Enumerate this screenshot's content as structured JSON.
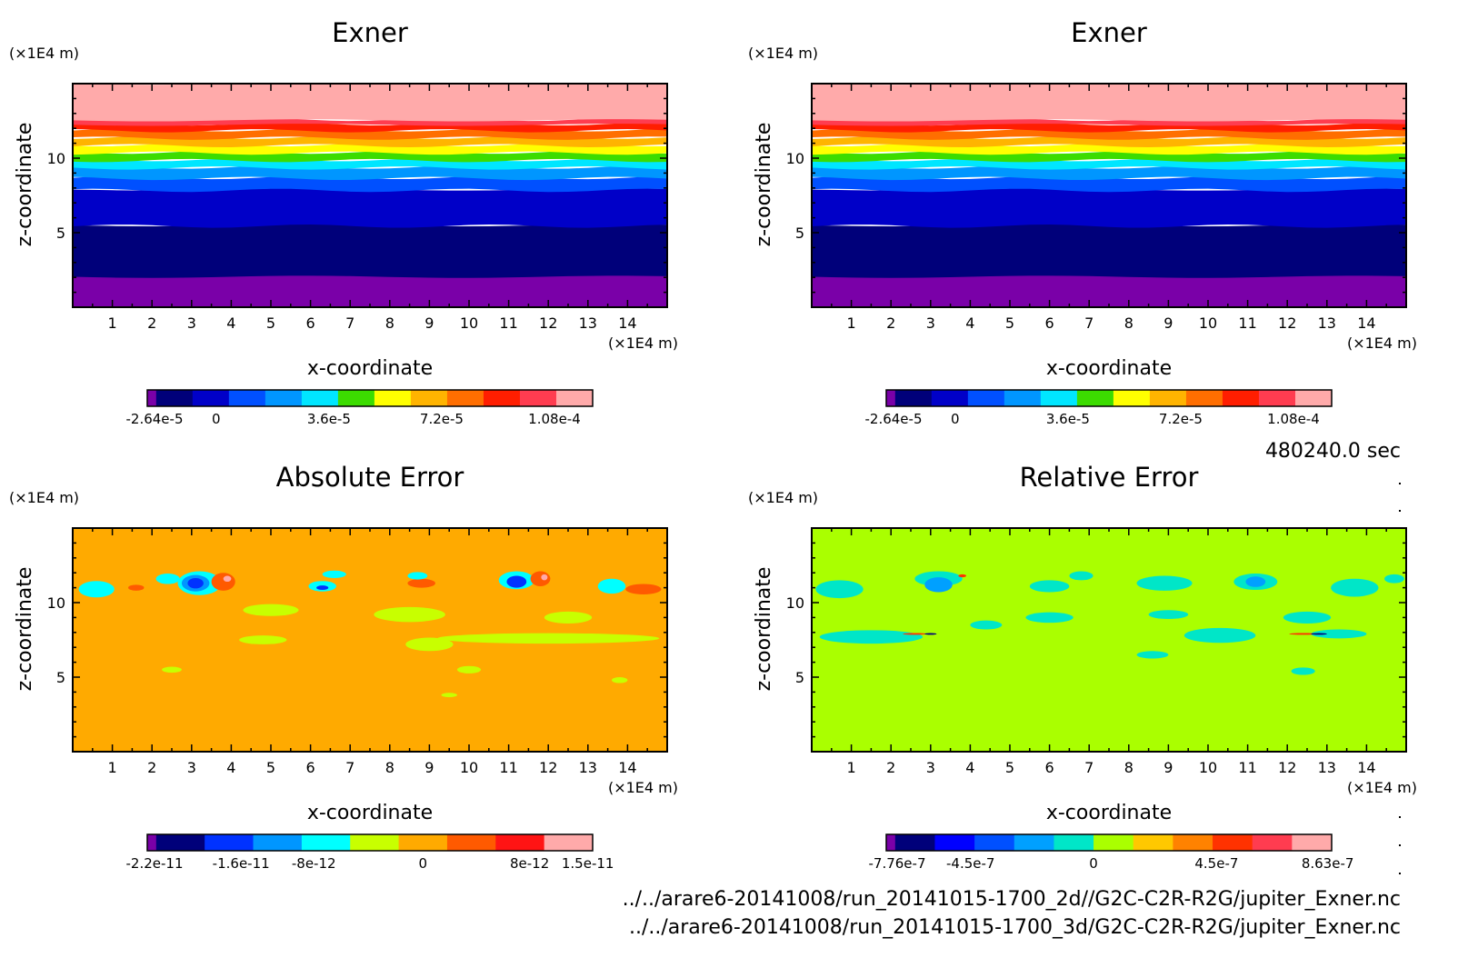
{
  "time_label": "480240.0 sec",
  "files": [
    "../../arare6-20141008/run_20141015-1700_2d//G2C-C2R-R2G/jupiter_Exner.nc",
    "../../arare6-20141008/run_20141015-1700_3d/G2C-C2R-R2G/jupiter_Exner.nc"
  ],
  "chart_data": [
    {
      "type": "heatmap",
      "title": "Exner",
      "xlabel": "x-coordinate",
      "ylabel": "z-coordinate",
      "x_unit": "(×1E4 m)",
      "y_unit": "(×1E4 m)",
      "xlim": [
        0,
        15
      ],
      "ylim": [
        0,
        15
      ],
      "x_ticks": [
        "1",
        "2",
        "3",
        "4",
        "5",
        "6",
        "7",
        "8",
        "9",
        "10",
        "11",
        "12",
        "13",
        "14"
      ],
      "y_ticks": [
        "5",
        "10"
      ],
      "colorbar": {
        "colors": [
          "#7a00a8",
          "#00007a",
          "#0000c8",
          "#0050ff",
          "#0096ff",
          "#00e6ff",
          "#3cdc00",
          "#ffff00",
          "#ffb400",
          "#ff6e00",
          "#ff1e00",
          "#ff3c50",
          "#ffaaaa"
        ],
        "labels": [
          "-2.64e-5",
          "0",
          "3.6e-5",
          "7.2e-5",
          "1.08e-4"
        ]
      },
      "bands": [
        {
          "z0": 0,
          "z1": 2.1,
          "color": "#7a00a8"
        },
        {
          "z0": 2.1,
          "z1": 5.5,
          "color": "#00007a"
        },
        {
          "z0": 5.5,
          "z1": 7.9,
          "color": "#0000c8"
        },
        {
          "z0": 7.9,
          "z1": 8.7,
          "color": "#0050ff"
        },
        {
          "z0": 8.7,
          "z1": 9.4,
          "color": "#0096ff"
        },
        {
          "z0": 9.4,
          "z1": 9.9,
          "color": "#00e6ff"
        },
        {
          "z0": 9.9,
          "z1": 10.4,
          "color": "#3cdc00"
        },
        {
          "z0": 10.4,
          "z1": 10.9,
          "color": "#ffff00"
        },
        {
          "z0": 10.9,
          "z1": 11.4,
          "color": "#ffb400"
        },
        {
          "z0": 11.4,
          "z1": 11.9,
          "color": "#ff6e00"
        },
        {
          "z0": 11.9,
          "z1": 12.3,
          "color": "#ff1e00"
        },
        {
          "z0": 12.3,
          "z1": 12.6,
          "color": "#ff3c50"
        },
        {
          "z0": 12.6,
          "z1": 15,
          "color": "#ffaaaa"
        }
      ]
    },
    {
      "type": "heatmap",
      "title": "Exner",
      "xlabel": "x-coordinate",
      "ylabel": "z-coordinate",
      "x_unit": "(×1E4 m)",
      "y_unit": "(×1E4 m)",
      "xlim": [
        0,
        15
      ],
      "ylim": [
        0,
        15
      ],
      "x_ticks": [
        "1",
        "2",
        "3",
        "4",
        "5",
        "6",
        "7",
        "8",
        "9",
        "10",
        "11",
        "12",
        "13",
        "14"
      ],
      "y_ticks": [
        "5",
        "10"
      ],
      "colorbar": {
        "colors": [
          "#7a00a8",
          "#00007a",
          "#0000c8",
          "#0050ff",
          "#0096ff",
          "#00e6ff",
          "#3cdc00",
          "#ffff00",
          "#ffb400",
          "#ff6e00",
          "#ff1e00",
          "#ff3c50",
          "#ffaaaa"
        ],
        "labels": [
          "-2.64e-5",
          "0",
          "3.6e-5",
          "7.2e-5",
          "1.08e-4"
        ]
      },
      "bands": [
        {
          "z0": 0,
          "z1": 2.1,
          "color": "#7a00a8"
        },
        {
          "z0": 2.1,
          "z1": 5.5,
          "color": "#00007a"
        },
        {
          "z0": 5.5,
          "z1": 7.9,
          "color": "#0000c8"
        },
        {
          "z0": 7.9,
          "z1": 8.7,
          "color": "#0050ff"
        },
        {
          "z0": 8.7,
          "z1": 9.4,
          "color": "#0096ff"
        },
        {
          "z0": 9.4,
          "z1": 9.9,
          "color": "#00e6ff"
        },
        {
          "z0": 9.9,
          "z1": 10.4,
          "color": "#3cdc00"
        },
        {
          "z0": 10.4,
          "z1": 10.9,
          "color": "#ffff00"
        },
        {
          "z0": 10.9,
          "z1": 11.4,
          "color": "#ffb400"
        },
        {
          "z0": 11.4,
          "z1": 11.9,
          "color": "#ff6e00"
        },
        {
          "z0": 11.9,
          "z1": 12.3,
          "color": "#ff1e00"
        },
        {
          "z0": 12.3,
          "z1": 12.6,
          "color": "#ff3c50"
        },
        {
          "z0": 12.6,
          "z1": 15,
          "color": "#ffaaaa"
        }
      ]
    },
    {
      "type": "heatmap",
      "title": "Absolute Error",
      "xlabel": "x-coordinate",
      "ylabel": "z-coordinate",
      "x_unit": "(×1E4 m)",
      "y_unit": "(×1E4 m)",
      "xlim": [
        0,
        15
      ],
      "ylim": [
        0,
        15
      ],
      "x_ticks": [
        "1",
        "2",
        "3",
        "4",
        "5",
        "6",
        "7",
        "8",
        "9",
        "10",
        "11",
        "12",
        "13",
        "14"
      ],
      "y_ticks": [
        "5",
        "10"
      ],
      "background": "#ffaa00",
      "colorbar": {
        "colors": [
          "#7a00a8",
          "#00007a",
          "#0032ff",
          "#0096ff",
          "#00ffff",
          "#c8ff00",
          "#ffaa00",
          "#ff5a00",
          "#ff1414",
          "#ffaaaa"
        ],
        "labels": [
          "-2.2e-11",
          "-1.6e-11",
          "-8e-12",
          "0",
          "8e-12",
          "1.5e-11"
        ]
      },
      "patches": [
        {
          "x": 0.6,
          "z": 10.9,
          "rx": 0.45,
          "rz": 0.55,
          "color": "#00ffff"
        },
        {
          "x": 2.4,
          "z": 11.6,
          "rx": 0.3,
          "rz": 0.35,
          "color": "#00ffff"
        },
        {
          "x": 3.2,
          "z": 11.3,
          "rx": 0.55,
          "rz": 0.8,
          "color": "#00ffff"
        },
        {
          "x": 3.1,
          "z": 11.3,
          "rx": 0.35,
          "rz": 0.55,
          "color": "#0096ff"
        },
        {
          "x": 3.1,
          "z": 11.3,
          "rx": 0.2,
          "rz": 0.35,
          "color": "#0032ff"
        },
        {
          "x": 3.8,
          "z": 11.4,
          "rx": 0.3,
          "rz": 0.6,
          "color": "#ff5a00"
        },
        {
          "x": 3.9,
          "z": 11.6,
          "rx": 0.1,
          "rz": 0.2,
          "color": "#ffaaaa"
        },
        {
          "x": 1.6,
          "z": 11.0,
          "rx": 0.2,
          "rz": 0.2,
          "color": "#ff5a00"
        },
        {
          "x": 6.3,
          "z": 11.1,
          "rx": 0.35,
          "rz": 0.35,
          "color": "#00ffff"
        },
        {
          "x": 6.3,
          "z": 11.0,
          "rx": 0.15,
          "rz": 0.15,
          "color": "#0032ff"
        },
        {
          "x": 6.6,
          "z": 11.9,
          "rx": 0.3,
          "rz": 0.25,
          "color": "#00ffff"
        },
        {
          "x": 8.8,
          "z": 11.3,
          "rx": 0.35,
          "rz": 0.3,
          "color": "#ff5a00"
        },
        {
          "x": 8.7,
          "z": 11.8,
          "rx": 0.25,
          "rz": 0.25,
          "color": "#00ffff"
        },
        {
          "x": 11.2,
          "z": 11.5,
          "rx": 0.45,
          "rz": 0.6,
          "color": "#00ffff"
        },
        {
          "x": 11.2,
          "z": 11.4,
          "rx": 0.25,
          "rz": 0.4,
          "color": "#0032ff"
        },
        {
          "x": 11.8,
          "z": 11.6,
          "rx": 0.25,
          "rz": 0.5,
          "color": "#ff5a00"
        },
        {
          "x": 11.9,
          "z": 11.7,
          "rx": 0.08,
          "rz": 0.2,
          "color": "#ffaaaa"
        },
        {
          "x": 13.6,
          "z": 11.1,
          "rx": 0.35,
          "rz": 0.5,
          "color": "#00ffff"
        },
        {
          "x": 14.4,
          "z": 10.9,
          "rx": 0.45,
          "rz": 0.35,
          "color": "#ff5a00"
        },
        {
          "x": 5.0,
          "z": 9.5,
          "rx": 0.7,
          "rz": 0.4,
          "color": "#c8ff00"
        },
        {
          "x": 8.5,
          "z": 9.2,
          "rx": 0.9,
          "rz": 0.5,
          "color": "#c8ff00"
        },
        {
          "x": 12.5,
          "z": 9.0,
          "rx": 0.6,
          "rz": 0.4,
          "color": "#c8ff00"
        },
        {
          "x": 9.0,
          "z": 7.2,
          "rx": 0.6,
          "rz": 0.45,
          "color": "#c8ff00"
        },
        {
          "x": 12.0,
          "z": 7.6,
          "rx": 2.8,
          "rz": 0.35,
          "color": "#c8ff00"
        },
        {
          "x": 4.8,
          "z": 7.5,
          "rx": 0.6,
          "rz": 0.3,
          "color": "#c8ff00"
        },
        {
          "x": 2.5,
          "z": 5.5,
          "rx": 0.25,
          "rz": 0.2,
          "color": "#c8ff00"
        },
        {
          "x": 10.0,
          "z": 5.5,
          "rx": 0.3,
          "rz": 0.25,
          "color": "#c8ff00"
        },
        {
          "x": 13.8,
          "z": 4.8,
          "rx": 0.2,
          "rz": 0.2,
          "color": "#c8ff00"
        },
        {
          "x": 9.5,
          "z": 3.8,
          "rx": 0.2,
          "rz": 0.15,
          "color": "#c8ff00"
        }
      ]
    },
    {
      "type": "heatmap",
      "title": "Relative Error",
      "xlabel": "x-coordinate",
      "ylabel": "z-coordinate",
      "x_unit": "(×1E4 m)",
      "y_unit": "(×1E4 m)",
      "xlim": [
        0,
        15
      ],
      "ylim": [
        0,
        15
      ],
      "x_ticks": [
        "1",
        "2",
        "3",
        "4",
        "5",
        "6",
        "7",
        "8",
        "9",
        "10",
        "11",
        "12",
        "13",
        "14"
      ],
      "y_ticks": [
        "5",
        "10"
      ],
      "background": "#aaff00",
      "colorbar": {
        "colors": [
          "#7a00a8",
          "#00007a",
          "#0000ff",
          "#0050ff",
          "#00a0ff",
          "#00e6c8",
          "#aaff00",
          "#ffc800",
          "#ff8200",
          "#ff3200",
          "#ff3c50",
          "#ffaaaa"
        ],
        "labels": [
          "-7.76e-7",
          "-4.5e-7",
          "0",
          "4.5e-7",
          "8.63e-7"
        ]
      },
      "patches": [
        {
          "x": 0.7,
          "z": 10.9,
          "rx": 0.6,
          "rz": 0.6,
          "color": "#00e6c8"
        },
        {
          "x": 3.2,
          "z": 11.6,
          "rx": 0.6,
          "rz": 0.5,
          "color": "#00e6c8"
        },
        {
          "x": 3.2,
          "z": 11.2,
          "rx": 0.35,
          "rz": 0.5,
          "color": "#00a0ff"
        },
        {
          "x": 6.0,
          "z": 11.1,
          "rx": 0.5,
          "rz": 0.4,
          "color": "#00e6c8"
        },
        {
          "x": 6.8,
          "z": 11.8,
          "rx": 0.3,
          "rz": 0.3,
          "color": "#00e6c8"
        },
        {
          "x": 8.9,
          "z": 11.3,
          "rx": 0.7,
          "rz": 0.5,
          "color": "#00e6c8"
        },
        {
          "x": 11.2,
          "z": 11.4,
          "rx": 0.55,
          "rz": 0.55,
          "color": "#00e6c8"
        },
        {
          "x": 11.2,
          "z": 11.4,
          "rx": 0.25,
          "rz": 0.35,
          "color": "#00a0ff"
        },
        {
          "x": 13.7,
          "z": 11.0,
          "rx": 0.6,
          "rz": 0.6,
          "color": "#00e6c8"
        },
        {
          "x": 14.7,
          "z": 11.6,
          "rx": 0.25,
          "rz": 0.3,
          "color": "#00e6c8"
        },
        {
          "x": 1.5,
          "z": 7.7,
          "rx": 1.3,
          "rz": 0.45,
          "color": "#00e6c8"
        },
        {
          "x": 4.4,
          "z": 8.5,
          "rx": 0.4,
          "rz": 0.3,
          "color": "#00e6c8"
        },
        {
          "x": 6.0,
          "z": 9.0,
          "rx": 0.6,
          "rz": 0.35,
          "color": "#00e6c8"
        },
        {
          "x": 9.0,
          "z": 9.2,
          "rx": 0.5,
          "rz": 0.3,
          "color": "#00e6c8"
        },
        {
          "x": 10.3,
          "z": 7.8,
          "rx": 0.9,
          "rz": 0.5,
          "color": "#00e6c8"
        },
        {
          "x": 12.5,
          "z": 9.0,
          "rx": 0.6,
          "rz": 0.4,
          "color": "#00e6c8"
        },
        {
          "x": 13.3,
          "z": 7.9,
          "rx": 0.7,
          "rz": 0.3,
          "color": "#00e6c8"
        },
        {
          "x": 8.6,
          "z": 6.5,
          "rx": 0.4,
          "rz": 0.25,
          "color": "#00e6c8"
        },
        {
          "x": 12.4,
          "z": 5.4,
          "rx": 0.3,
          "rz": 0.25,
          "color": "#00e6c8"
        },
        {
          "x": 2.6,
          "z": 7.9,
          "rx": 0.3,
          "rz": 0.06,
          "color": "#ff3200"
        },
        {
          "x": 3.0,
          "z": 7.9,
          "rx": 0.15,
          "rz": 0.06,
          "color": "#00007a"
        },
        {
          "x": 12.4,
          "z": 7.9,
          "rx": 0.35,
          "rz": 0.06,
          "color": "#ff3200"
        },
        {
          "x": 12.8,
          "z": 7.9,
          "rx": 0.2,
          "rz": 0.06,
          "color": "#00007a"
        },
        {
          "x": 3.8,
          "z": 11.8,
          "rx": 0.1,
          "rz": 0.1,
          "color": "#ff3200"
        }
      ]
    }
  ]
}
